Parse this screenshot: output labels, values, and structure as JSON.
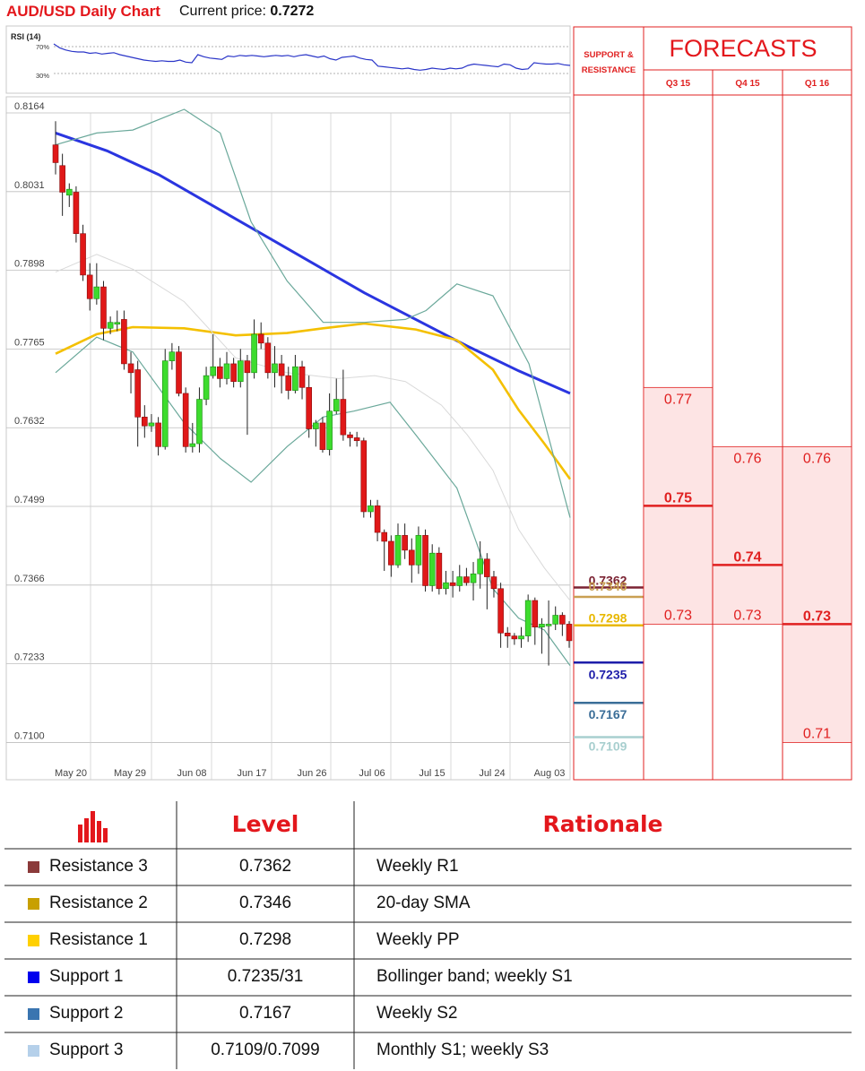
{
  "header": {
    "title": "AUD/USD Daily Chart",
    "price_label": "Current price:",
    "price_value": "0.7272"
  },
  "chart_data": [
    {
      "type": "line",
      "title": "RSI (14)",
      "y_ticks": [
        "70%",
        "30%"
      ],
      "ylim": [
        0,
        100
      ],
      "values": [
        74,
        68,
        65,
        63,
        62,
        62,
        60,
        61,
        59,
        60,
        61,
        58,
        56,
        54,
        52,
        50,
        49,
        48,
        49,
        48,
        48,
        50,
        47,
        46,
        58,
        55,
        53,
        52,
        51,
        56,
        55,
        57,
        56,
        57,
        56,
        55,
        56,
        57,
        56,
        57,
        55,
        57,
        58,
        56,
        54,
        56,
        52,
        50,
        54,
        55,
        56,
        53,
        51,
        50,
        41,
        40,
        39,
        38,
        37,
        38,
        36,
        35,
        36,
        38,
        37,
        36,
        38,
        37,
        38,
        42,
        44,
        43,
        42,
        41,
        40,
        44,
        43,
        38,
        36,
        37,
        46,
        45,
        44,
        44,
        45,
        43,
        42
      ]
    },
    {
      "type": "candlestick",
      "title": "AUD/USD Daily Chart",
      "y_ticks": [
        "0.8164",
        "0.8031",
        "0.7898",
        "0.7765",
        "0.7632",
        "0.7499",
        "0.7366",
        "0.7233",
        "0.7100"
      ],
      "ylim": [
        0.7034,
        0.8164
      ],
      "x_ticks": [
        "May 20",
        "May 29",
        "Jun 08",
        "Jun 17",
        "Jun 26",
        "Jul 06",
        "Jul 15",
        "Jul 24",
        "Aug 03"
      ],
      "candles": [
        [
          0.811,
          0.808,
          0.815,
          0.806
        ],
        [
          0.8075,
          0.803,
          0.8095,
          0.799
        ],
        [
          0.8025,
          0.8035,
          0.8045,
          0.8005
        ],
        [
          0.803,
          0.796,
          0.804,
          0.7945
        ],
        [
          0.796,
          0.789,
          0.7975,
          0.788
        ],
        [
          0.789,
          0.785,
          0.791,
          0.783
        ],
        [
          0.785,
          0.787,
          0.791,
          0.784
        ],
        [
          0.787,
          0.78,
          0.788,
          0.778
        ],
        [
          0.78,
          0.781,
          0.782,
          0.779
        ],
        [
          0.781,
          0.781,
          0.783,
          0.7795
        ],
        [
          0.7815,
          0.774,
          0.783,
          0.773
        ],
        [
          0.774,
          0.7725,
          0.776,
          0.769
        ],
        [
          0.773,
          0.765,
          0.7745,
          0.76
        ],
        [
          0.765,
          0.7635,
          0.767,
          0.7615
        ],
        [
          0.7635,
          0.764,
          0.7655,
          0.7625
        ],
        [
          0.764,
          0.76,
          0.765,
          0.7585
        ],
        [
          0.76,
          0.7745,
          0.7765,
          0.7595
        ],
        [
          0.7745,
          0.776,
          0.7775,
          0.773
        ],
        [
          0.776,
          0.769,
          0.777,
          0.7685
        ],
        [
          0.769,
          0.76,
          0.77,
          0.759
        ],
        [
          0.76,
          0.7605,
          0.764,
          0.759
        ],
        [
          0.7605,
          0.768,
          0.77,
          0.759
        ],
        [
          0.768,
          0.772,
          0.7735,
          0.767
        ],
        [
          0.772,
          0.7735,
          0.779,
          0.7715
        ],
        [
          0.7735,
          0.7715,
          0.775,
          0.77
        ],
        [
          0.7715,
          0.774,
          0.776,
          0.7705
        ],
        [
          0.774,
          0.771,
          0.775,
          0.77
        ],
        [
          0.771,
          0.7745,
          0.7765,
          0.77
        ],
        [
          0.7745,
          0.7725,
          0.7755,
          0.762
        ],
        [
          0.7725,
          0.779,
          0.7815,
          0.7715
        ],
        [
          0.779,
          0.7775,
          0.781,
          0.7765
        ],
        [
          0.7775,
          0.7725,
          0.7785,
          0.7715
        ],
        [
          0.7725,
          0.774,
          0.777,
          0.77
        ],
        [
          0.774,
          0.772,
          0.7755,
          0.769
        ],
        [
          0.772,
          0.7695,
          0.7735,
          0.768
        ],
        [
          0.7695,
          0.7735,
          0.7755,
          0.769
        ],
        [
          0.7735,
          0.77,
          0.7745,
          0.768
        ],
        [
          0.77,
          0.763,
          0.772,
          0.7615
        ],
        [
          0.763,
          0.764,
          0.7645,
          0.76
        ],
        [
          0.764,
          0.7595,
          0.765,
          0.759
        ],
        [
          0.7595,
          0.766,
          0.769,
          0.7585
        ],
        [
          0.766,
          0.768,
          0.7715,
          0.7655
        ],
        [
          0.768,
          0.762,
          0.773,
          0.761
        ],
        [
          0.762,
          0.7615,
          0.7625,
          0.76
        ],
        [
          0.7615,
          0.761,
          0.7625,
          0.76
        ],
        [
          0.761,
          0.749,
          0.7615,
          0.748
        ],
        [
          0.749,
          0.75,
          0.751,
          0.748
        ],
        [
          0.75,
          0.7455,
          0.751,
          0.744
        ],
        [
          0.7455,
          0.744,
          0.746,
          0.739
        ],
        [
          0.744,
          0.74,
          0.745,
          0.738
        ],
        [
          0.74,
          0.745,
          0.747,
          0.7395
        ],
        [
          0.745,
          0.7425,
          0.747,
          0.741
        ],
        [
          0.7425,
          0.74,
          0.7445,
          0.737
        ],
        [
          0.74,
          0.745,
          0.7465,
          0.7385
        ],
        [
          0.745,
          0.7365,
          0.746,
          0.7355
        ],
        [
          0.7365,
          0.742,
          0.7435,
          0.7355
        ],
        [
          0.742,
          0.736,
          0.743,
          0.735
        ],
        [
          0.736,
          0.737,
          0.739,
          0.735
        ],
        [
          0.737,
          0.7365,
          0.739,
          0.7345
        ],
        [
          0.7365,
          0.738,
          0.74,
          0.7355
        ],
        [
          0.738,
          0.737,
          0.7395,
          0.7365
        ],
        [
          0.737,
          0.7385,
          0.7405,
          0.734
        ],
        [
          0.7385,
          0.741,
          0.744,
          0.736
        ],
        [
          0.741,
          0.738,
          0.742,
          0.7325
        ],
        [
          0.738,
          0.736,
          0.739,
          0.7345
        ],
        [
          0.736,
          0.7285,
          0.737,
          0.726
        ],
        [
          0.7285,
          0.728,
          0.7295,
          0.726
        ],
        [
          0.728,
          0.7275,
          0.7285,
          0.7265
        ],
        [
          0.7275,
          0.728,
          0.7295,
          0.726
        ],
        [
          0.728,
          0.734,
          0.735,
          0.727
        ],
        [
          0.734,
          0.7295,
          0.7345,
          0.7265
        ],
        [
          0.7295,
          0.73,
          0.731,
          0.725
        ],
        [
          0.73,
          0.73,
          0.734,
          0.723
        ],
        [
          0.73,
          0.7315,
          0.733,
          0.729
        ],
        [
          0.7315,
          0.73,
          0.732,
          0.728
        ],
        [
          0.73,
          0.7272,
          0.7305,
          0.726
        ]
      ],
      "series": [
        {
          "color": "#2a35e0",
          "values": [
            [
              0,
              0.813
            ],
            [
              10,
              0.81
            ],
            [
              20,
              0.806
            ],
            [
              30,
              0.801
            ],
            [
              40,
              0.796
            ],
            [
              50,
              0.791
            ],
            [
              60,
              0.786
            ],
            [
              70,
              0.7815
            ],
            [
              80,
              0.777
            ],
            [
              90,
              0.7728
            ],
            [
              100,
              0.769
            ]
          ]
        },
        {
          "color": "#f4c000",
          "values": [
            [
              0,
              0.7757
            ],
            [
              8,
              0.779
            ],
            [
              15,
              0.7802
            ],
            [
              25,
              0.78
            ],
            [
              35,
              0.7788
            ],
            [
              45,
              0.7792
            ],
            [
              52,
              0.78
            ],
            [
              60,
              0.7808
            ],
            [
              70,
              0.7798
            ],
            [
              78,
              0.778
            ],
            [
              85,
              0.773
            ],
            [
              90,
              0.7662
            ],
            [
              95,
              0.7605
            ],
            [
              100,
              0.7545
            ]
          ]
        },
        {
          "color": "#6aa89a",
          "values": [
            [
              0,
              0.811
            ],
            [
              8,
              0.813
            ],
            [
              15,
              0.8135
            ],
            [
              25,
              0.817
            ],
            [
              32,
              0.813
            ],
            [
              38,
              0.798
            ],
            [
              45,
              0.788
            ],
            [
              52,
              0.781
            ],
            [
              60,
              0.781
            ],
            [
              68,
              0.7815
            ],
            [
              72,
              0.783
            ],
            [
              78,
              0.7875
            ],
            [
              85,
              0.7855
            ],
            [
              92,
              0.774
            ],
            [
              100,
              0.748
            ]
          ]
        },
        {
          "color": "#6aa89a",
          "values": [
            [
              0,
              0.7725
            ],
            [
              8,
              0.7785
            ],
            [
              15,
              0.776
            ],
            [
              25,
              0.764
            ],
            [
              32,
              0.758
            ],
            [
              38,
              0.754
            ],
            [
              45,
              0.76
            ],
            [
              52,
              0.765
            ],
            [
              58,
              0.766
            ],
            [
              65,
              0.7675
            ],
            [
              70,
              0.762
            ],
            [
              78,
              0.753
            ],
            [
              85,
              0.736
            ],
            [
              90,
              0.731
            ],
            [
              95,
              0.729
            ],
            [
              100,
              0.723
            ]
          ]
        },
        {
          "color": "#d9d9d9",
          "values": [
            [
              0,
              0.7895
            ],
            [
              8,
              0.7925
            ],
            [
              15,
              0.79
            ],
            [
              25,
              0.7845
            ],
            [
              35,
              0.775
            ],
            [
              45,
              0.7725
            ],
            [
              55,
              0.7715
            ],
            [
              62,
              0.772
            ],
            [
              68,
              0.771
            ],
            [
              75,
              0.767
            ],
            [
              80,
              0.762
            ],
            [
              85,
              0.756
            ],
            [
              90,
              0.746
            ],
            [
              95,
              0.7395
            ],
            [
              100,
              0.734
            ]
          ]
        }
      ]
    }
  ],
  "support_resistance": {
    "header": "SUPPORT & RESISTANCE",
    "levels": [
      {
        "name": "Resistance 3",
        "value": "0.7362",
        "color": "#7b2333",
        "level": 0.7362
      },
      {
        "name": "Resistance 2",
        "value": "0.7346",
        "color": "#c9a052",
        "level": 0.7346
      },
      {
        "name": "Resistance 1",
        "value": "0.7298",
        "color": "#e8b800",
        "level": 0.7298
      },
      {
        "name": "Support 1",
        "value": "0.7235",
        "color": "#1e1eaa",
        "level": 0.7235
      },
      {
        "name": "Support 2",
        "value": "0.7167",
        "color": "#3b6e98",
        "level": 0.7167
      },
      {
        "name": "Support 3",
        "value": "0.7109",
        "color": "#a8cfcf",
        "level": 0.7109
      }
    ]
  },
  "forecasts": {
    "title": "FORECASTS",
    "columns": [
      {
        "label": "Q3 15",
        "high": 0.77,
        "mid": 0.75,
        "low": 0.73,
        "high_label": "0.77",
        "mid_label": "0.75",
        "low_label": "0.73"
      },
      {
        "label": "Q4 15",
        "high": 0.76,
        "mid": 0.74,
        "low": 0.73,
        "high_label": "0.76",
        "mid_label": "0.74",
        "low_label": "0.73"
      },
      {
        "label": "Q1 16",
        "high": 0.76,
        "mid": 0.73,
        "low": 0.71,
        "high_label": "0.76",
        "mid_label": "0.73",
        "low_label": "0.71"
      }
    ]
  },
  "table": {
    "headers": [
      "Level",
      "Rationale"
    ],
    "icon": "bar-chart-icon",
    "rows": [
      {
        "name": "Resistance 3",
        "level": "0.7362",
        "rationale": "Weekly R1",
        "color": "#8b3a3a"
      },
      {
        "name": "Resistance 2",
        "level": "0.7346",
        "rationale": "20-day SMA",
        "color": "#c8a000"
      },
      {
        "name": "Resistance 1",
        "level": "0.7298",
        "rationale": "Weekly PP",
        "color": "#ffd000"
      },
      {
        "name": "Support 1",
        "level": "0.7235/31",
        "rationale": "Bollinger band; weekly S1",
        "color": "#0000ee"
      },
      {
        "name": "Support 2",
        "level": "0.7167",
        "rationale": "Weekly S2",
        "color": "#3a75b0"
      },
      {
        "name": "Support 3",
        "level": "0.7109/0.7099",
        "rationale": "Monthly S1; weekly S3",
        "color": "#b5d0ea"
      }
    ]
  }
}
